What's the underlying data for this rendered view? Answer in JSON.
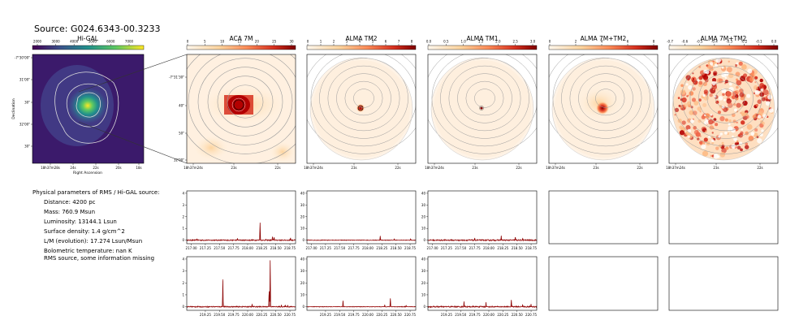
{
  "source_title": "Source: G024.6343-00.3233",
  "higal": {
    "title": "Hi-GAL",
    "xlabel": "Right Ascension",
    "ylabel": "Declination",
    "colorbar_ticks": [
      "2000",
      "3000",
      "4000",
      "5000",
      "6000",
      "7000"
    ],
    "x_ticks": [
      "18h37m28s",
      "24s",
      "22s",
      "20s",
      "18s"
    ],
    "y_ticks": [
      "-7°30'00\"",
      "31'00\"",
      "30\"",
      "32'00\"",
      "30\""
    ]
  },
  "panels": [
    {
      "title": "ACA 7M",
      "colorbar_ticks": [
        "0",
        "5",
        "10",
        "15",
        "20",
        "25",
        "30"
      ],
      "x_ticks": [
        "18h37m24s",
        "23s",
        "22s"
      ],
      "y_ticks": [
        "-7°31'30\"",
        "40\"",
        "50\"",
        "32'00\""
      ],
      "style": "aca"
    },
    {
      "title": "ALMA TM2",
      "colorbar_ticks": [
        "0",
        "1",
        "2",
        "3",
        "4",
        "5",
        "6",
        "7",
        "8"
      ],
      "x_ticks": [
        "18h37m24s",
        "23s",
        "22s"
      ],
      "style": "tm2"
    },
    {
      "title": "ALMA TM1",
      "colorbar_ticks": [
        "0.0",
        "0.5",
        "1.0",
        "1.5",
        "2.0",
        "2.5",
        "3.0"
      ],
      "x_ticks": [
        "18h37m24s",
        "23s",
        "22s"
      ],
      "style": "tm1"
    },
    {
      "title": "ALMA 7M+TM2",
      "colorbar_ticks": [
        "0",
        "2",
        "4",
        "6",
        "8"
      ],
      "x_ticks": [
        "18h37m24s",
        "23s",
        "22s"
      ],
      "style": "tm2b"
    },
    {
      "title": "ALMA 7M+TM2",
      "colorbar_ticks": [
        "-0.7",
        "-0.6",
        "-0.5",
        "-0.4",
        "-0.3",
        "-0.2",
        "-0.1",
        "0.0"
      ],
      "x_ticks": [
        "18h37m24s",
        "23s",
        "22s"
      ],
      "style": "noise"
    }
  ],
  "info": {
    "heading": "Physical parameters of RMS / Hi-GAL source:",
    "lines": [
      "Distance: 4200 pc",
      "Mass: 760.9 Msun",
      "Luminosity: 13144.1 Lsun",
      "Surface density: 1.4 g/cm^2",
      "L/M (evolution): 17.274 Lsun/Msun",
      "Bolometric temperature: nan K"
    ],
    "note": "RMS source, some information missing"
  },
  "colors": {
    "spectrum": "#8b0000",
    "baseline": "#d62728",
    "contour": "#9a9a9a"
  },
  "chart_data": [
    {
      "type": "line",
      "name": "spectrum-row1-col1",
      "x_ticks": [
        "217.00",
        "217.25",
        "217.50",
        "217.75",
        "218.00",
        "218.25",
        "218.50",
        "218.75"
      ],
      "xlim": [
        216.92,
        218.85
      ],
      "y_ticks": [
        "0",
        "1",
        "2",
        "3",
        "4"
      ],
      "ylim": [
        -0.3,
        4.2
      ],
      "noise": 0.05,
      "peaks": [
        [
          217.1,
          0.12
        ],
        [
          217.82,
          0.15
        ],
        [
          218.22,
          1.5
        ],
        [
          218.32,
          0.05
        ],
        [
          218.44,
          0.3
        ],
        [
          218.47,
          0.25
        ],
        [
          218.76,
          0.2
        ]
      ]
    },
    {
      "type": "line",
      "name": "spectrum-row1-col2",
      "x_ticks": [
        "217.00",
        "217.25",
        "217.50",
        "217.75",
        "218.00",
        "218.25",
        "218.50",
        "218.75"
      ],
      "xlim": [
        216.92,
        218.85
      ],
      "y_ticks": [
        "0",
        "10",
        "20",
        "30",
        "40"
      ],
      "ylim": [
        -3,
        42
      ],
      "noise": 0.3,
      "peaks": [
        [
          218.22,
          3.5
        ],
        [
          218.47,
          1.2
        ],
        [
          218.76,
          1.0
        ]
      ]
    },
    {
      "type": "line",
      "name": "spectrum-row1-col3",
      "x_ticks": [
        "217.00",
        "217.25",
        "217.50",
        "217.75",
        "218.00",
        "218.25",
        "218.50",
        "218.75"
      ],
      "xlim": [
        216.92,
        218.85
      ],
      "y_ticks": [
        "0",
        "10",
        "20",
        "30",
        "40"
      ],
      "ylim": [
        -3,
        42
      ],
      "noise": 0.6,
      "peaks": [
        [
          217.75,
          1.2
        ],
        [
          218.22,
          3.5
        ],
        [
          218.47,
          2.5
        ],
        [
          218.6,
          1.5
        ]
      ]
    },
    {
      "type": "line",
      "name": "spectrum-row2-col1",
      "x_ticks": [
        "219.25",
        "219.50",
        "219.75",
        "220.00",
        "220.25",
        "220.50",
        "220.75"
      ],
      "xlim": [
        218.92,
        220.85
      ],
      "y_ticks": [
        "0",
        "1",
        "2",
        "3",
        "4"
      ],
      "ylim": [
        -0.3,
        4.2
      ],
      "noise": 0.05,
      "peaks": [
        [
          219.56,
          2.3
        ],
        [
          220.08,
          0.2
        ],
        [
          220.38,
          1.3
        ],
        [
          220.4,
          3.9
        ],
        [
          220.6,
          0.12
        ],
        [
          220.67,
          0.12
        ],
        [
          220.71,
          0.12
        ]
      ]
    },
    {
      "type": "line",
      "name": "spectrum-row2-col2",
      "x_ticks": [
        "219.25",
        "219.50",
        "219.75",
        "220.00",
        "220.25",
        "220.50",
        "220.75"
      ],
      "xlim": [
        218.92,
        220.85
      ],
      "y_ticks": [
        "0",
        "10",
        "20",
        "30",
        "40"
      ],
      "ylim": [
        -3,
        42
      ],
      "noise": 0.3,
      "peaks": [
        [
          219.56,
          5.0
        ],
        [
          220.4,
          7.0
        ],
        [
          220.3,
          1.5
        ],
        [
          220.68,
          1.0
        ]
      ]
    },
    {
      "type": "line",
      "name": "spectrum-row2-col3",
      "x_ticks": [
        "219.25",
        "219.50",
        "219.75",
        "220.00",
        "220.25",
        "220.50",
        "220.75"
      ],
      "xlim": [
        218.92,
        220.85
      ],
      "y_ticks": [
        "0",
        "10",
        "20",
        "30",
        "40"
      ],
      "ylim": [
        -3,
        42
      ],
      "noise": 0.6,
      "peaks": [
        [
          219.56,
          4.5
        ],
        [
          219.95,
          3.5
        ],
        [
          220.4,
          5.5
        ],
        [
          220.6,
          2.0
        ],
        [
          220.75,
          2.0
        ]
      ]
    }
  ]
}
